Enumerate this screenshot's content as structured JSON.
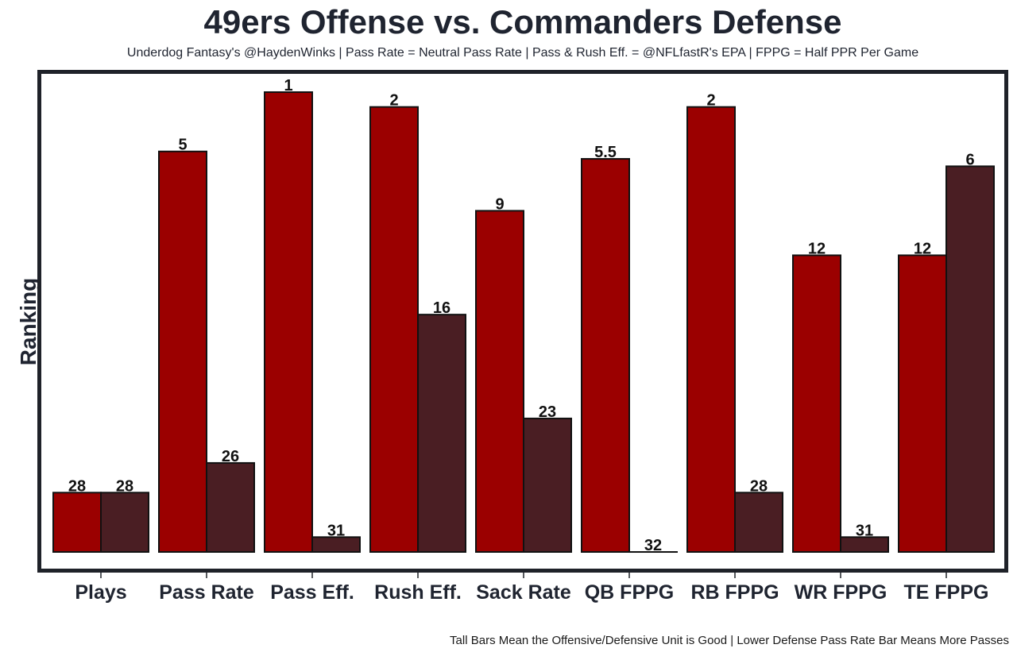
{
  "chart_data": {
    "type": "bar",
    "title": "49ers Offense vs. Commanders Defense",
    "subtitle": "Underdog Fantasy's @HaydenWinks | Pass Rate = Neutral Pass Rate | Pass & Rush Eff. = @NFLfastR's EPA | FPPG = Half PPR Per Game",
    "ylabel": "Ranking",
    "caption": "Tall Bars Mean the Offensive/Defensive Unit is Good | Lower Defense Pass Rate Bar Means More Passes",
    "categories": [
      "Plays",
      "Pass Rate",
      "Pass Eff.",
      "Rush Eff.",
      "Sack Rate",
      "QB FPPG",
      "RB FPPG",
      "WR FPPG",
      "TE FPPG"
    ],
    "rank_scale": {
      "best": 1,
      "worst": 32
    },
    "series": [
      {
        "name": "49ers Offense",
        "color": "#9b0000",
        "values": [
          28,
          5,
          1,
          2,
          9,
          5.5,
          2,
          12,
          12
        ],
        "labels": [
          "28",
          "5",
          "1",
          "2",
          "9",
          "5.5",
          "2",
          "12",
          "12"
        ]
      },
      {
        "name": "Commanders Defense",
        "color": "#4a1e23",
        "values": [
          28,
          26,
          31,
          16,
          23,
          32,
          28,
          31,
          6
        ],
        "labels": [
          "28",
          "26",
          "31",
          "16",
          "23",
          "32",
          "28",
          "31",
          "6"
        ]
      }
    ],
    "frame_color": "#1f2229",
    "grid": false
  }
}
